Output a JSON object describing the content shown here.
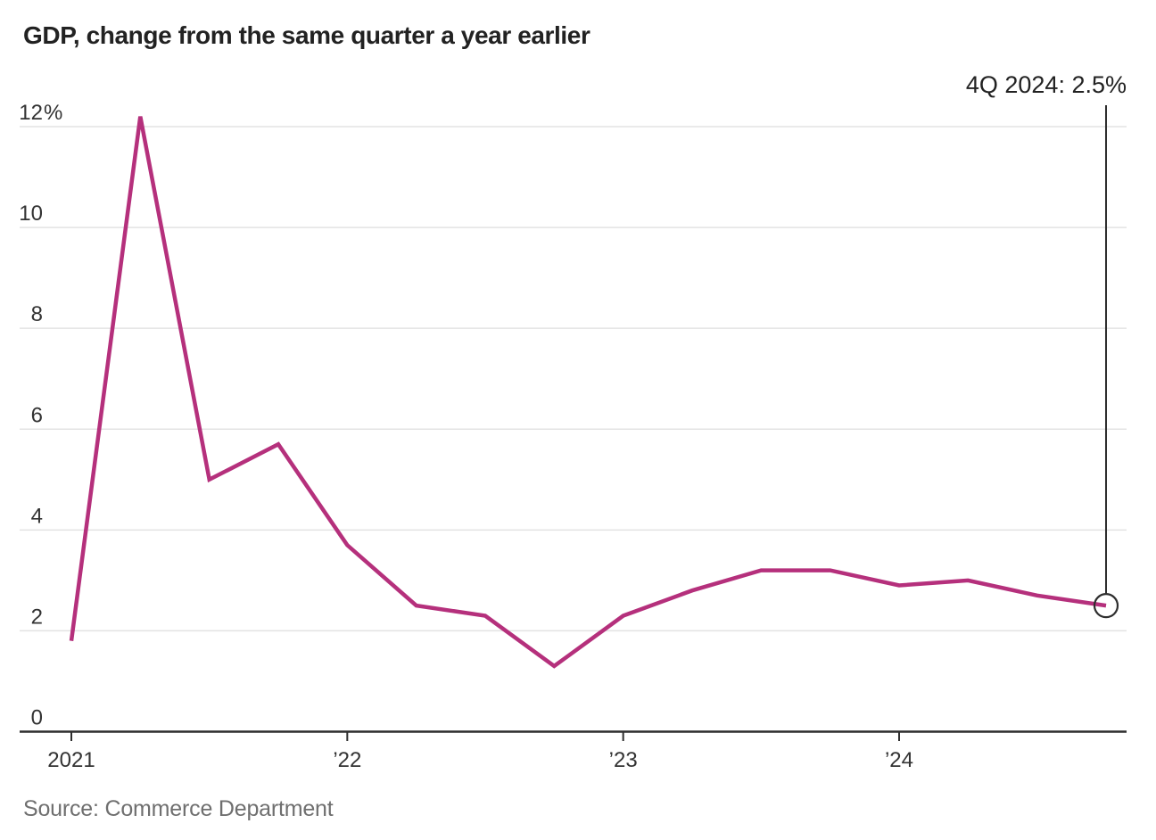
{
  "header": {
    "title": "GDP, change from the same quarter a year earlier"
  },
  "annotation": {
    "label": "4Q 2024: 2.5%"
  },
  "footer": {
    "source": "Source: Commerce Department"
  },
  "colors": {
    "line": "#b5307c",
    "gridline": "#e3e3e3",
    "axis": "#2e2e2e",
    "tick_label": "#333333",
    "title_text": "#222222",
    "annotation_text": "#222222",
    "source_text": "#6f6f6f"
  },
  "chart_data": {
    "type": "line",
    "title": "GDP, change from the same quarter a year earlier",
    "xlabel": "",
    "ylabel": "",
    "categories": [
      "1Q 2021",
      "2Q 2021",
      "3Q 2021",
      "4Q 2021",
      "1Q 2022",
      "2Q 2022",
      "3Q 2022",
      "4Q 2022",
      "1Q 2023",
      "2Q 2023",
      "3Q 2023",
      "4Q 2023",
      "1Q 2024",
      "2Q 2024",
      "3Q 2024",
      "4Q 2024"
    ],
    "values": [
      1.8,
      12.2,
      5.0,
      5.7,
      3.7,
      2.5,
      2.3,
      1.3,
      2.3,
      2.8,
      3.2,
      3.2,
      2.9,
      3.0,
      2.7,
      2.5
    ],
    "unit": "percent",
    "ylim": [
      0,
      12.4
    ],
    "grid": "horizontal",
    "legend": "none",
    "yticks": [
      {
        "value": 0,
        "label": "0",
        "suffix": ""
      },
      {
        "value": 2,
        "label": "2",
        "suffix": ""
      },
      {
        "value": 4,
        "label": "4",
        "suffix": ""
      },
      {
        "value": 6,
        "label": "6",
        "suffix": ""
      },
      {
        "value": 8,
        "label": "8",
        "suffix": ""
      },
      {
        "value": 10,
        "label": "10",
        "suffix": ""
      },
      {
        "value": 12,
        "label": "12",
        "suffix": "%"
      }
    ],
    "xticks": [
      {
        "index": 0,
        "label": "2021"
      },
      {
        "index": 4,
        "label": "’22"
      },
      {
        "index": 8,
        "label": "’23"
      },
      {
        "index": 12,
        "label": "’24"
      }
    ],
    "end_annotation": {
      "text": "4Q 2024: 2.5%",
      "point_index": 15,
      "value": 2.5,
      "marker": "open-circle"
    },
    "source": "Source: Commerce Department"
  }
}
